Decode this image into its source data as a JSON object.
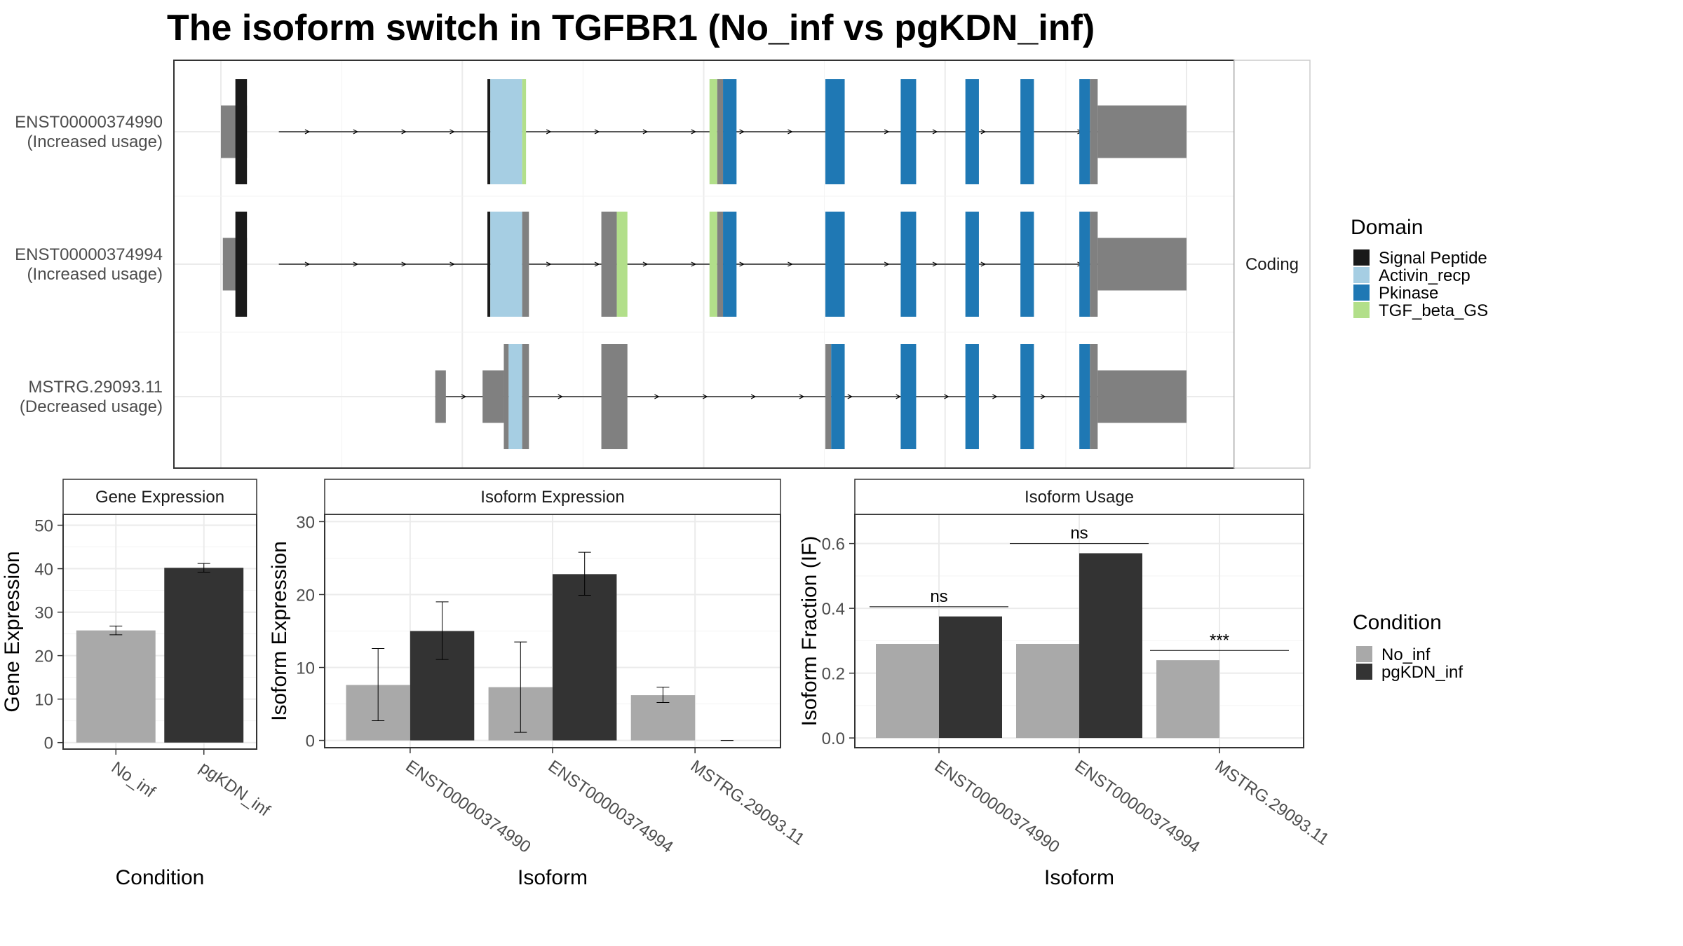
{
  "title": "The isoform switch in TGFBR1 (No_inf vs pgKDN_inf)",
  "colors": {
    "utr": "#808080",
    "signal_peptide": "#1a1a1a",
    "activin_recp": "#a6cee3",
    "pkinase": "#1f78b4",
    "tgf_beta_gs": "#b2df8a",
    "no_inf": "#a9a9a9",
    "pgkdn_inf": "#333333",
    "grid": "#ebebeb",
    "panel_border": "#333333",
    "strip_border": "#333333"
  },
  "structure_panel": {
    "facet_label": "Coding",
    "xlim": [
      0,
      100
    ],
    "transcripts": [
      {
        "id": "ENST00000374990",
        "status": "(Increased usage)",
        "intron": [
          6,
          95
        ],
        "exons": [
          {
            "s": 0,
            "e": 2.7,
            "type": "utr"
          },
          {
            "s": 1.5,
            "e": 2.7,
            "type": "signal_peptide"
          },
          {
            "s": 27.6,
            "e": 27.9,
            "type": "signal_peptide"
          },
          {
            "s": 27.9,
            "e": 31.2,
            "type": "activin_recp"
          },
          {
            "s": 31.2,
            "e": 31.6,
            "type": "tgf_beta_gs"
          },
          {
            "s": 50.6,
            "e": 51.4,
            "type": "tgf_beta_gs"
          },
          {
            "s": 51.4,
            "e": 52,
            "type": "utr"
          },
          {
            "s": 52,
            "e": 53.4,
            "type": "pkinase"
          },
          {
            "s": 62.6,
            "e": 64.6,
            "type": "pkinase"
          },
          {
            "s": 70.4,
            "e": 72,
            "type": "pkinase"
          },
          {
            "s": 77.1,
            "e": 78.5,
            "type": "pkinase"
          },
          {
            "s": 82.8,
            "e": 84.2,
            "type": "pkinase"
          },
          {
            "s": 88.9,
            "e": 90,
            "type": "pkinase"
          },
          {
            "s": 90,
            "e": 90.8,
            "type": "utr"
          },
          {
            "s": 90.8,
            "e": 100,
            "type": "utr_3"
          }
        ]
      },
      {
        "id": "ENST00000374994",
        "status": "(Increased usage)",
        "intron": [
          6,
          95
        ],
        "exons": [
          {
            "s": 0.2,
            "e": 2.7,
            "type": "utr"
          },
          {
            "s": 1.5,
            "e": 2.7,
            "type": "signal_peptide"
          },
          {
            "s": 27.6,
            "e": 27.9,
            "type": "signal_peptide"
          },
          {
            "s": 27.9,
            "e": 31.2,
            "type": "activin_recp"
          },
          {
            "s": 31.2,
            "e": 31.9,
            "type": "utr"
          },
          {
            "s": 39.4,
            "e": 41,
            "type": "utr"
          },
          {
            "s": 41,
            "e": 42.1,
            "type": "tgf_beta_gs"
          },
          {
            "s": 50.6,
            "e": 51.4,
            "type": "tgf_beta_gs"
          },
          {
            "s": 51.4,
            "e": 52,
            "type": "utr"
          },
          {
            "s": 52,
            "e": 53.4,
            "type": "pkinase"
          },
          {
            "s": 62.6,
            "e": 64.6,
            "type": "pkinase"
          },
          {
            "s": 70.4,
            "e": 72,
            "type": "pkinase"
          },
          {
            "s": 77.1,
            "e": 78.5,
            "type": "pkinase"
          },
          {
            "s": 82.8,
            "e": 84.2,
            "type": "pkinase"
          },
          {
            "s": 88.9,
            "e": 90,
            "type": "pkinase"
          },
          {
            "s": 90,
            "e": 90.8,
            "type": "utr"
          },
          {
            "s": 90.8,
            "e": 100,
            "type": "utr_3"
          }
        ]
      },
      {
        "id": "MSTRG.29093.11",
        "status": "(Decreased usage)",
        "intron": [
          22.2,
          95
        ],
        "exons": [
          {
            "s": 22.2,
            "e": 23.3,
            "type": "utr"
          },
          {
            "s": 27.1,
            "e": 29.3,
            "type": "utr_mid"
          },
          {
            "s": 29.3,
            "e": 29.8,
            "type": "utr"
          },
          {
            "s": 29.8,
            "e": 31.2,
            "type": "activin_recp"
          },
          {
            "s": 31.2,
            "e": 31.9,
            "type": "utr"
          },
          {
            "s": 39.4,
            "e": 42.1,
            "type": "utr"
          },
          {
            "s": 62.6,
            "e": 63.2,
            "type": "utr"
          },
          {
            "s": 63.2,
            "e": 64.6,
            "type": "pkinase"
          },
          {
            "s": 70.4,
            "e": 72,
            "type": "pkinase"
          },
          {
            "s": 77.1,
            "e": 78.5,
            "type": "pkinase"
          },
          {
            "s": 82.8,
            "e": 84.2,
            "type": "pkinase"
          },
          {
            "s": 88.9,
            "e": 90,
            "type": "pkinase"
          },
          {
            "s": 90,
            "e": 90.8,
            "type": "utr"
          },
          {
            "s": 90.8,
            "e": 100,
            "type": "utr_3"
          }
        ]
      }
    ]
  },
  "legend_domain": {
    "title": "Domain",
    "items": [
      {
        "label": "Signal Peptide",
        "key": "signal_peptide"
      },
      {
        "label": "Activin_recp",
        "key": "activin_recp"
      },
      {
        "label": "Pkinase",
        "key": "pkinase"
      },
      {
        "label": "TGF_beta_GS",
        "key": "tgf_beta_gs"
      }
    ]
  },
  "legend_condition": {
    "title": "Condition",
    "items": [
      {
        "label": "No_inf",
        "key": "no_inf"
      },
      {
        "label": "pgKDN_inf",
        "key": "pgkdn_inf"
      }
    ]
  },
  "chart_data": [
    {
      "type": "bar",
      "strip": "Gene Expression",
      "xlabel": "Condition",
      "ylabel": "Gene Expression",
      "ylim": [
        -1.5,
        52.5
      ],
      "yticks": [
        0,
        10,
        20,
        30,
        40,
        50
      ],
      "categories": [
        "No_inf",
        "pgKDN_inf"
      ],
      "series": [
        {
          "key": "no_inf",
          "values": [
            25.8,
            null
          ],
          "err_low": [
            24.8,
            null
          ],
          "err_high": [
            26.8,
            null
          ]
        },
        {
          "key": "pgkdn_inf",
          "values": [
            null,
            40.2
          ],
          "err_low": [
            null,
            39.2
          ],
          "err_high": [
            null,
            41.2
          ]
        }
      ]
    },
    {
      "type": "bar",
      "strip": "Isoform Expression",
      "xlabel": "Isoform",
      "ylabel": "Isoform Expression",
      "ylim": [
        -1,
        31
      ],
      "yticks": [
        0,
        10,
        20,
        30
      ],
      "categories": [
        "ENST00000374990",
        "ENST00000374994",
        "MSTRG.29093.11"
      ],
      "series": [
        {
          "key": "no_inf",
          "values": [
            7.6,
            7.3,
            6.2
          ],
          "err_low": [
            2.7,
            1.1,
            5.2
          ],
          "err_high": [
            12.6,
            13.5,
            7.3
          ]
        },
        {
          "key": "pgkdn_inf",
          "values": [
            15.0,
            22.8,
            0
          ],
          "err_low": [
            11.1,
            19.9,
            0
          ],
          "err_high": [
            19.0,
            25.8,
            0
          ]
        }
      ]
    },
    {
      "type": "bar",
      "strip": "Isoform Usage",
      "xlabel": "Isoform",
      "ylabel": "Isoform Fraction (IF)",
      "ylim": [
        -0.03,
        0.69
      ],
      "yticks": [
        0.0,
        0.2,
        0.4,
        0.6
      ],
      "ytick_labels": [
        "0.0",
        "0.2",
        "0.4",
        "0.6"
      ],
      "categories": [
        "ENST00000374990",
        "ENST00000374994",
        "MSTRG.29093.11"
      ],
      "series": [
        {
          "key": "no_inf",
          "values": [
            0.29,
            0.29,
            0.24
          ]
        },
        {
          "key": "pgkdn_inf",
          "values": [
            0.375,
            0.57,
            0
          ]
        }
      ],
      "significance": [
        {
          "category": 0,
          "label": "ns",
          "y": 0.405
        },
        {
          "category": 1,
          "label": "ns",
          "y": 0.6
        },
        {
          "category": 2,
          "label": "***",
          "y": 0.27
        }
      ]
    }
  ]
}
